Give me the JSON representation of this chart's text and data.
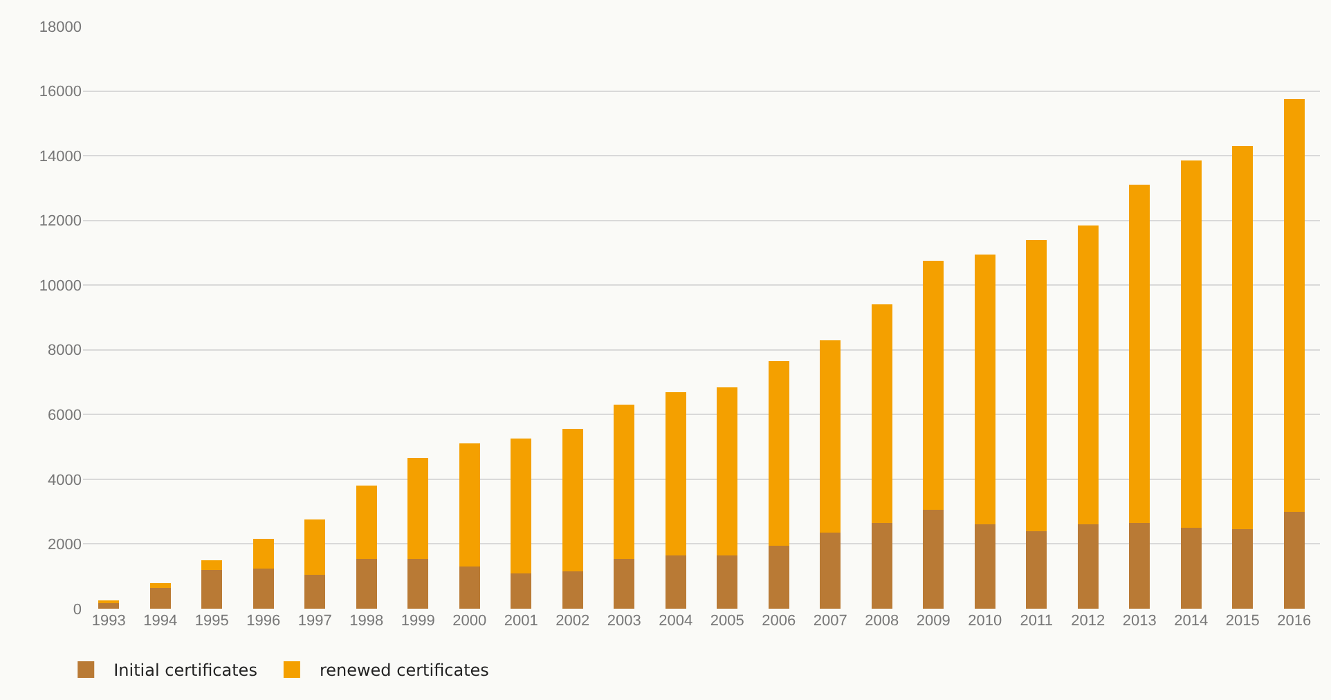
{
  "chart_data": {
    "type": "bar",
    "stacked": true,
    "categories": [
      "1993",
      "1994",
      "1995",
      "1996",
      "1997",
      "1998",
      "1999",
      "2000",
      "2001",
      "2002",
      "2003",
      "2004",
      "2005",
      "2006",
      "2007",
      "2008",
      "2009",
      "2010",
      "2011",
      "2012",
      "2013",
      "2014",
      "2015",
      "2016"
    ],
    "series": [
      {
        "name": "Initial certificates",
        "color": "#b97a35",
        "values": [
          200,
          650,
          1200,
          1250,
          1050,
          1550,
          1550,
          1300,
          1100,
          1150,
          1550,
          1650,
          1650,
          1950,
          2350,
          2650,
          3050,
          2600,
          2400,
          2600,
          2650,
          2500,
          2450,
          3000
        ]
      },
      {
        "name": "renewed certificates",
        "color": "#f4a000",
        "values": [
          50,
          150,
          300,
          900,
          1700,
          2250,
          3100,
          3800,
          4150,
          4400,
          4750,
          5050,
          5200,
          5700,
          5950,
          6750,
          7700,
          8350,
          9000,
          9250,
          10450,
          11350,
          11850,
          12750
        ]
      }
    ],
    "ylim": [
      0,
      18000
    ],
    "yticks": [
      0,
      2000,
      4000,
      6000,
      8000,
      10000,
      12000,
      14000,
      16000,
      18000
    ],
    "grid": "y",
    "legend": "bottom left"
  }
}
